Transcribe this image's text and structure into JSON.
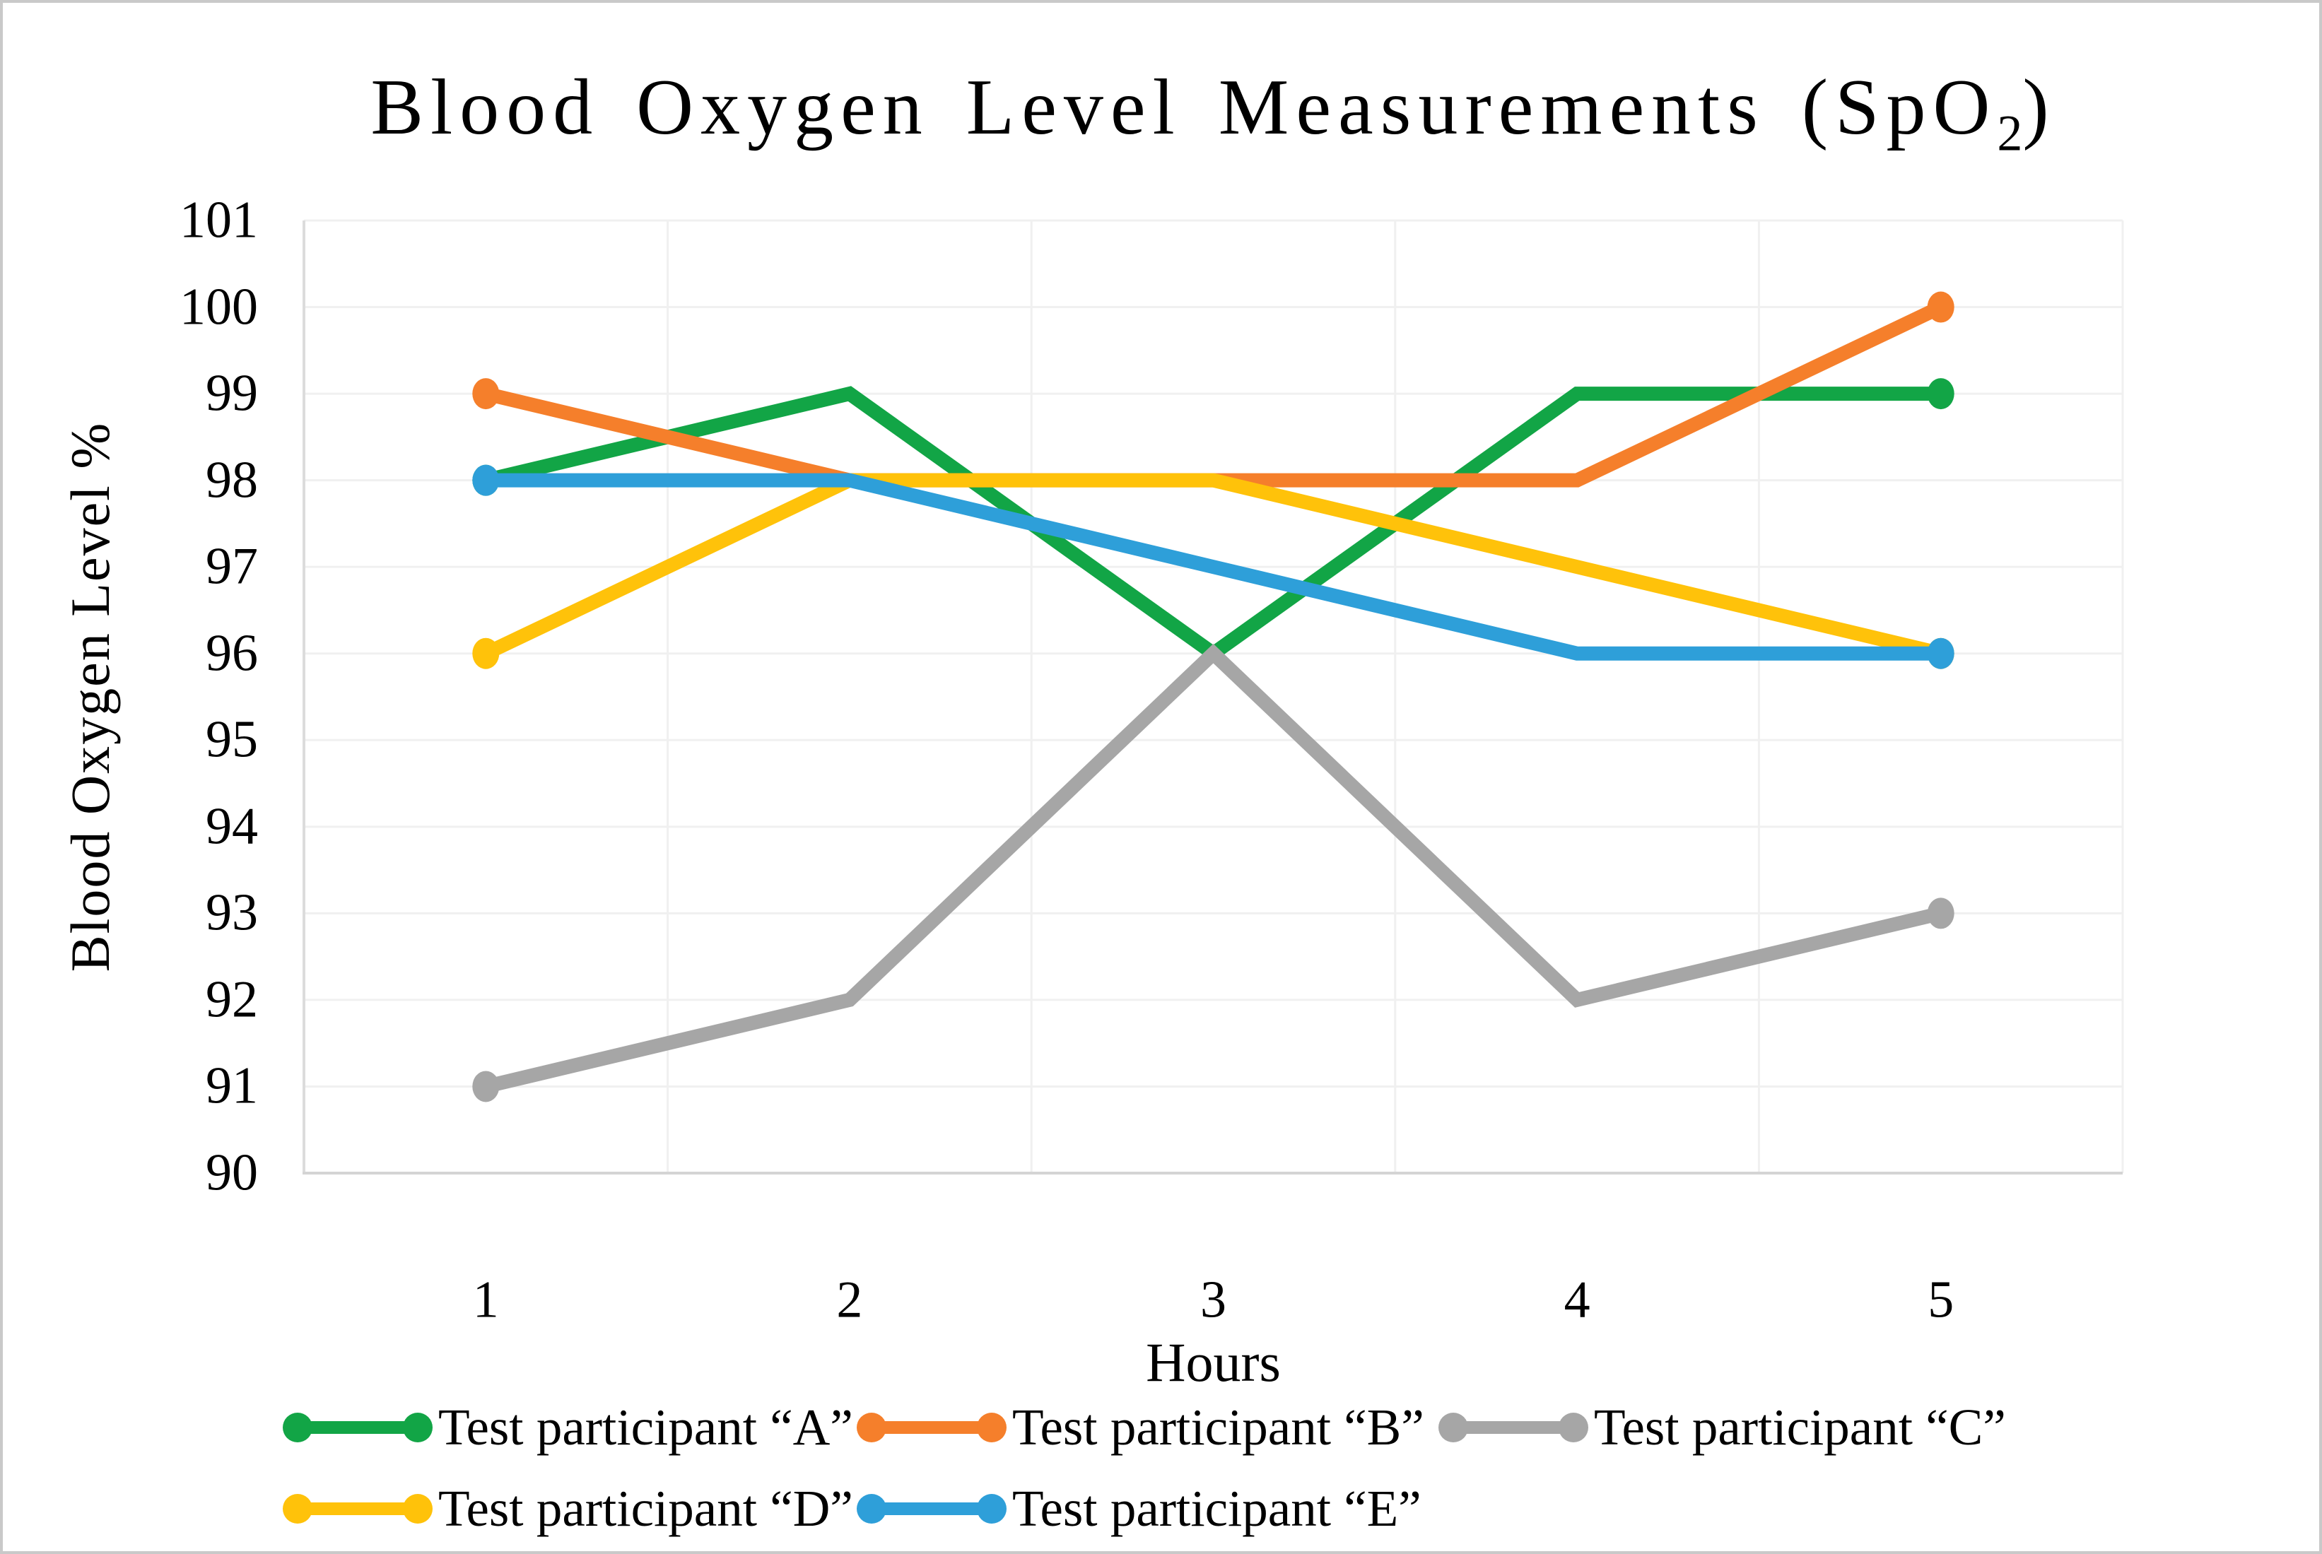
{
  "frame": {
    "border_color": "#C9C9C9",
    "background": "#FFFFFF"
  },
  "title": {
    "prefix": "Blood Oxygen Level Measurements (SpO",
    "subscript": "2",
    "suffix": ")"
  },
  "axes": {
    "x_title": "Hours",
    "y_title": "Blood Oxygen Level %",
    "x_ticks": [
      "1",
      "2",
      "3",
      "4",
      "5"
    ],
    "y_ticks": [
      "101",
      "100",
      "99",
      "98",
      "97",
      "96",
      "95",
      "94",
      "93",
      "92",
      "91",
      "90"
    ]
  },
  "colors": {
    "gridline": "#F0F0F0",
    "y_axis_line": "#DCDCDC",
    "x_axis_line": "#D4D4D4",
    "text": "#000000"
  },
  "legend": {
    "position": "bottom",
    "rows": [
      [
        0,
        1,
        2
      ],
      [
        3,
        4
      ]
    ]
  },
  "chart_data": {
    "type": "line",
    "title": "Blood Oxygen Level Measurements (SpO2)",
    "xlabel": "Hours",
    "ylabel": "Blood Oxygen Level %",
    "categories": [
      "1",
      "2",
      "3",
      "4",
      "5"
    ],
    "ylim": [
      90,
      101
    ],
    "y_tick_step": 1,
    "grid": true,
    "marker_style": "dots at first and last points only",
    "legend_position": "bottom",
    "series": [
      {
        "name": "Test participant “A”",
        "color": "#12A546",
        "values": [
          98,
          99,
          96,
          99,
          99
        ]
      },
      {
        "name": "Test participant “B”",
        "color": "#F57F2B",
        "values": [
          99,
          98,
          98,
          98,
          100
        ]
      },
      {
        "name": "Test participant “C”",
        "color": "#A6A6A6",
        "values": [
          91,
          92,
          96,
          92,
          93
        ]
      },
      {
        "name": "Test participant “D”",
        "color": "#FFC20A",
        "values": [
          96,
          98,
          98,
          97,
          96
        ]
      },
      {
        "name": "Test participant “E”",
        "color": "#2E9FD9",
        "values": [
          98,
          98,
          97,
          96,
          96
        ]
      }
    ]
  }
}
